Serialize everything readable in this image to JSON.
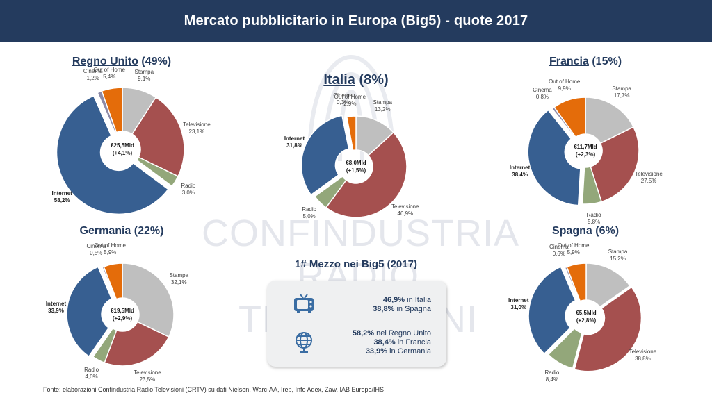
{
  "header": {
    "title": "Mercato pubblicitario in Europa (Big5) - quote 2017"
  },
  "watermark": {
    "line1": "CONFINDUSTRIA",
    "line2": "RADIO TELEVISIONI"
  },
  "colors": {
    "header_bg": "#243b5e",
    "Stampa": "#bfbfbf",
    "Televisione": "#a5504f",
    "Radio": "#93a77a",
    "Internet": "#375f91",
    "Cinema": "#8d8aa8",
    "Out of Home": "#e46c0a"
  },
  "chart_data": [
    {
      "type": "pie",
      "id": "uk",
      "country": "Regno Unito",
      "share": "(49%)",
      "center_line1": "€25,5Mld",
      "center_line2": "(+4,1%)",
      "slices": [
        {
          "label": "Stampa",
          "value": 9.1,
          "text": "9,1%"
        },
        {
          "label": "Televisione",
          "value": 23.1,
          "text": "23,1%"
        },
        {
          "label": "Radio",
          "value": 3.0,
          "text": "3,0%"
        },
        {
          "label": "Internet",
          "value": 58.2,
          "text": "58,2%"
        },
        {
          "label": "Cinema",
          "value": 1.2,
          "text": "1,2%"
        },
        {
          "label": "Out of Home",
          "value": 5.4,
          "text": "5,4%"
        }
      ]
    },
    {
      "type": "pie",
      "id": "it",
      "country": "Italia",
      "share": "(8%)",
      "center_line1": "€8,0Mld",
      "center_line2": "(+1,5%)",
      "slices": [
        {
          "label": "Stampa",
          "value": 13.2,
          "text": "13,2%"
        },
        {
          "label": "Televisione",
          "value": 46.9,
          "text": "46,9%"
        },
        {
          "label": "Radio",
          "value": 5.0,
          "text": "5,0%"
        },
        {
          "label": "Internet",
          "value": 31.8,
          "text": "31,8%"
        },
        {
          "label": "Cinema",
          "value": 0.3,
          "text": "0,3%"
        },
        {
          "label": "Out of Home",
          "value": 2.9,
          "text": "2,9%"
        }
      ]
    },
    {
      "type": "pie",
      "id": "fr",
      "country": "Francia",
      "share": "(15%)",
      "center_line1": "€11,7Mld",
      "center_line2": "(+2,3%)",
      "slices": [
        {
          "label": "Stampa",
          "value": 17.7,
          "text": "17,7%"
        },
        {
          "label": "Televisione",
          "value": 27.5,
          "text": "27,5%"
        },
        {
          "label": "Radio",
          "value": 5.8,
          "text": "5,8%"
        },
        {
          "label": "Internet",
          "value": 38.4,
          "text": "38,4%"
        },
        {
          "label": "Cinema",
          "value": 0.8,
          "text": "0,8%"
        },
        {
          "label": "Out of Home",
          "value": 9.9,
          "text": "9,9%"
        }
      ]
    },
    {
      "type": "pie",
      "id": "de",
      "country": "Germania",
      "share": "(22%)",
      "center_line1": "€19,5Mld",
      "center_line2": "(+2,9%)",
      "slices": [
        {
          "label": "Stampa",
          "value": 32.1,
          "text": "32,1%"
        },
        {
          "label": "Televisione",
          "value": 23.5,
          "text": "23,5%"
        },
        {
          "label": "Radio",
          "value": 4.0,
          "text": "4,0%"
        },
        {
          "label": "Internet",
          "value": 33.9,
          "text": "33,9%"
        },
        {
          "label": "Cinema",
          "value": 0.5,
          "text": "0,5%"
        },
        {
          "label": "Out of Home",
          "value": 5.9,
          "text": "5,9%"
        }
      ]
    },
    {
      "type": "pie",
      "id": "es",
      "country": "Spagna",
      "share": "(6%)",
      "center_line1": "€5,5Mld",
      "center_line2": "(+2,8%)",
      "slices": [
        {
          "label": "Stampa",
          "value": 15.2,
          "text": "15,2%"
        },
        {
          "label": "Televisione",
          "value": 38.8,
          "text": "38,8%"
        },
        {
          "label": "Radio",
          "value": 8.4,
          "text": "8,4%"
        },
        {
          "label": "Internet",
          "value": 31.0,
          "text": "31,0%"
        },
        {
          "label": "Cinema",
          "value": 0.6,
          "text": "0,6%"
        },
        {
          "label": "Out of Home",
          "value": 5.9,
          "text": "5,9%"
        }
      ]
    }
  ],
  "summary": {
    "title": "1# Mezzo nei Big5 (2017)",
    "tv": {
      "icon": "tv-icon",
      "line1_value": "46,9%",
      "line1_text": " in Italia",
      "line2_value": "38,8%",
      "line2_text": " in Spagna"
    },
    "internet": {
      "icon": "globe-icon",
      "line1_value": "58,2%",
      "line1_text": " nel Regno Unito",
      "line2_value": "38,4%",
      "line2_text": " in Francia",
      "line3_value": "33,9%",
      "line3_text": " in Germania"
    }
  },
  "footer": {
    "source": "Fonte: elaborazioni Confindustria Radio Televisioni (CRTV) su dati Nielsen, Warc-AA, Irep, Info Adex, Zaw, IAB Europe/IHS"
  }
}
